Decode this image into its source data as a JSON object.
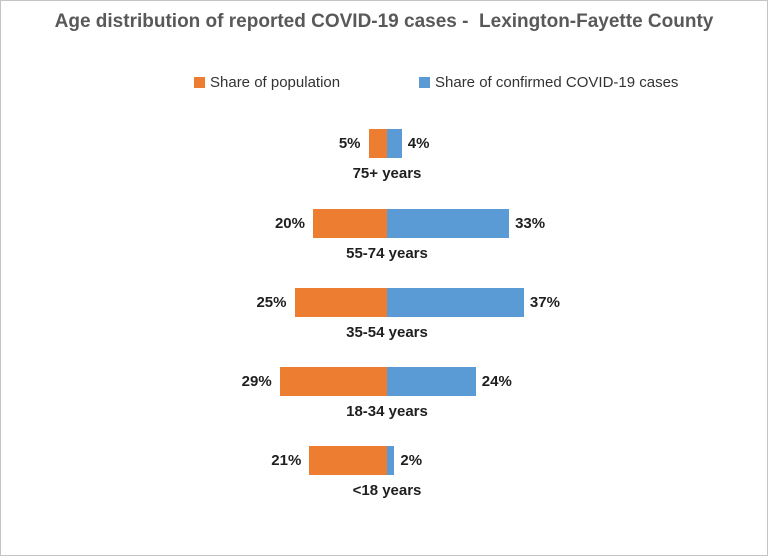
{
  "title": "Age distribution of reported COVID-19 cases -  Lexington-Fayette County",
  "chart_data": {
    "type": "bar",
    "subtype": "diverging-horizontal",
    "title": "Age distribution of reported COVID-19 cases -  Lexington-Fayette County",
    "categories": [
      "75+ years",
      "55-74 years",
      "35-54 years",
      "18-34 years",
      "<18 years"
    ],
    "series": [
      {
        "name": "Share of population",
        "side": "left",
        "color": "#ED7D31",
        "values": [
          5,
          20,
          25,
          29,
          21
        ]
      },
      {
        "name": "Share of confirmed COVID-19 cases",
        "side": "right",
        "color": "#5B9BD5",
        "values": [
          4,
          33,
          37,
          24,
          2
        ]
      }
    ],
    "value_label_format": "{v}%",
    "value_labels": {
      "left": [
        "5%",
        "20%",
        "25%",
        "29%",
        "21%"
      ],
      "right": [
        "4%",
        "33%",
        "37%",
        "24%",
        "2%"
      ]
    },
    "legend_position": "top",
    "axes_hidden": true,
    "gridlines": false,
    "xlabel": "",
    "ylabel": "",
    "background": "#ffffff"
  },
  "colors": {
    "population_orange": "#ED7D31",
    "cases_blue": "#5B9BD5",
    "title_gray": "#595959",
    "label_black": "#1f1f1f",
    "border_gray": "#c4c4c4"
  }
}
